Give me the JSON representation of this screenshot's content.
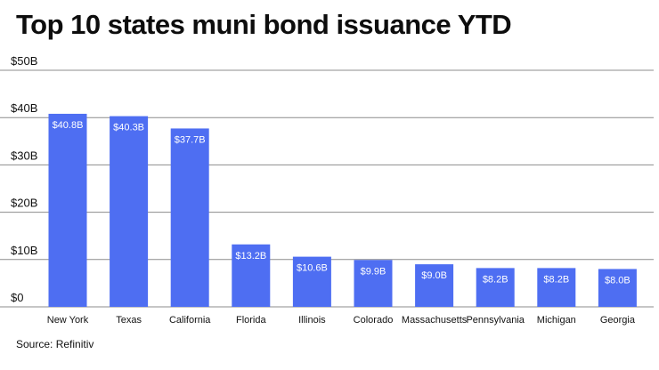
{
  "title": "Top 10 states muni bond issuance YTD",
  "source": "Source: Refinitiv",
  "colors": {
    "bar": "#4e6ef2",
    "grid": "#8c8c8c",
    "bar_label": "#ffffff"
  },
  "chart_data": {
    "type": "bar",
    "title": "Top 10 states muni bond issuance YTD",
    "categories": [
      "New York",
      "Texas",
      "California",
      "Florida",
      "Illinois",
      "Colorado",
      "Massachusetts",
      "Pennsylvania",
      "Michigan",
      "Georgia"
    ],
    "values": [
      40.8,
      40.3,
      37.7,
      13.2,
      10.6,
      9.9,
      9.0,
      8.2,
      8.2,
      8.0
    ],
    "data_labels": [
      "$40.8B",
      "$40.3B",
      "$37.7B",
      "$13.2B",
      "$10.6B",
      "$9.9B",
      "$9.0B",
      "$8.2B",
      "$8.2B",
      "$8.0B"
    ],
    "yticks": [
      0,
      10,
      20,
      30,
      40,
      50
    ],
    "ytick_labels": [
      "$0",
      "$10B",
      "$20B",
      "$30B",
      "$40B",
      "$50B"
    ],
    "ylim": [
      0,
      50
    ],
    "xlabel": "",
    "ylabel": "",
    "grid": true,
    "legend": "none"
  }
}
